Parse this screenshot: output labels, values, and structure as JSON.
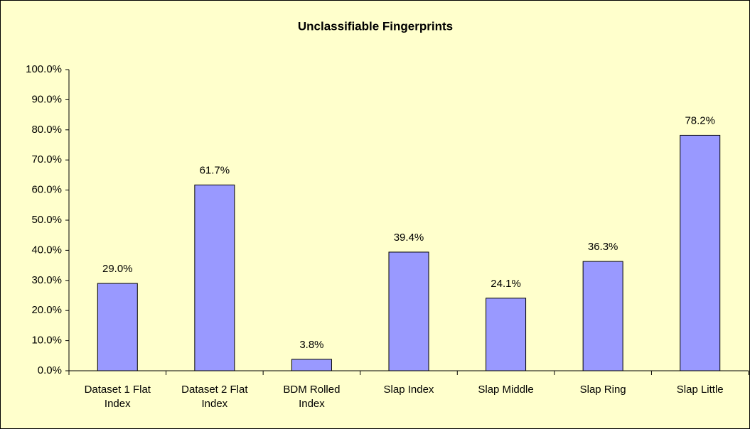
{
  "chart_data": {
    "type": "bar",
    "title": "Unclassifiable Fingerprints",
    "categories": [
      "Dataset 1 Flat Index",
      "Dataset 2 Flat Index",
      "BDM Rolled Index",
      "Slap Index",
      "Slap Middle",
      "Slap Ring",
      "Slap Little"
    ],
    "values": [
      29.0,
      61.7,
      3.8,
      39.4,
      24.1,
      36.3,
      78.2
    ],
    "value_labels": [
      "29.0%",
      "61.7%",
      "3.8%",
      "39.4%",
      "24.1%",
      "36.3%",
      "78.2%"
    ],
    "color": "#9999ff",
    "ylim": [
      0,
      100
    ],
    "yticks": [
      {
        "value": 0,
        "label": "0.0%"
      },
      {
        "value": 10,
        "label": "10.0%"
      },
      {
        "value": 20,
        "label": "20.0%"
      },
      {
        "value": 30,
        "label": "30.0%"
      },
      {
        "value": 40,
        "label": "40.0%"
      },
      {
        "value": 50,
        "label": "50.0%"
      },
      {
        "value": 60,
        "label": "60.0%"
      },
      {
        "value": 70,
        "label": "70.0%"
      },
      {
        "value": 80,
        "label": "80.0%"
      },
      {
        "value": 90,
        "label": "90.0%"
      },
      {
        "value": 100,
        "label": "100.0%"
      }
    ],
    "grid": false
  }
}
